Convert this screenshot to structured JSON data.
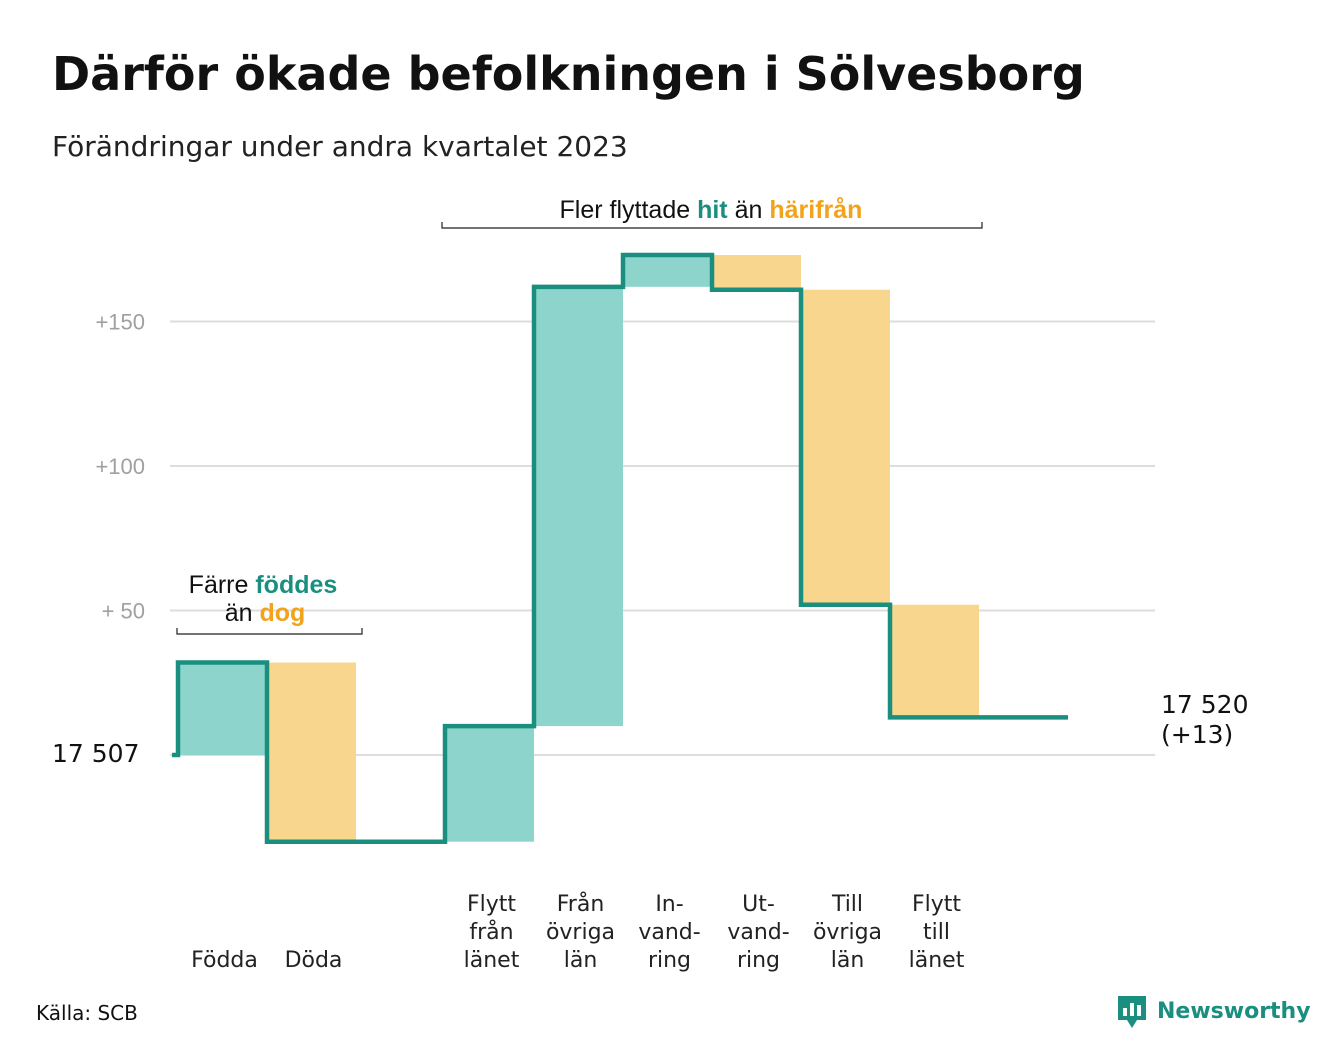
{
  "title": "Därför ökade befolkningen i Sölvesborg",
  "subtitle": "Förändringar under andra kvartalet 2023",
  "source": "Källa: SCB",
  "brand": "Newsworthy",
  "colors": {
    "line": "#1a8f80",
    "increase": "#8dd5cc",
    "decrease": "#f9d68e",
    "grid": "#dddddd",
    "tick": "#a0a0a0"
  },
  "annotations": {
    "birth_group": {
      "line1_a": "Färre",
      "line1_b": "föddes",
      "line2_a": "än",
      "line2_b": "dog"
    },
    "migration_group": {
      "a": "Fler flyttade",
      "b": "hit",
      "c": "än",
      "d": "härifrån"
    }
  },
  "chart_data": {
    "type": "waterfall",
    "title": "Därför ökade befolkningen i Sölvesborg",
    "subtitle": "Förändringar under andra kvartalet 2023",
    "start_label": "17  507",
    "start_value": 17507,
    "end_label_1": "17 520",
    "end_label_2": "(+13)",
    "end_value": 17520,
    "ylim": [
      -30,
      175
    ],
    "yticks": [
      {
        "value": 50,
        "label": "+  50"
      },
      {
        "value": 100,
        "label": "+100"
      },
      {
        "value": 150,
        "label": "+150"
      }
    ],
    "steps": [
      {
        "label": [
          "Födda"
        ],
        "change": 32
      },
      {
        "label": [
          "Döda"
        ],
        "change": -62
      },
      {
        "label": [],
        "change": 0
      },
      {
        "label": [
          "Flytt",
          "från",
          "länet"
        ],
        "change": 40
      },
      {
        "label": [
          "Från",
          "övriga",
          "län"
        ],
        "change": 152
      },
      {
        "label": [
          "In-",
          "vand-",
          "ring"
        ],
        "change": 11
      },
      {
        "label": [
          "Ut-",
          "vand-",
          "ring"
        ],
        "change": -12
      },
      {
        "label": [
          "Till",
          "övriga",
          "län"
        ],
        "change": -109
      },
      {
        "label": [
          "Flytt",
          "till",
          "länet"
        ],
        "change": -39
      },
      {
        "label": [],
        "change": 0
      }
    ]
  }
}
